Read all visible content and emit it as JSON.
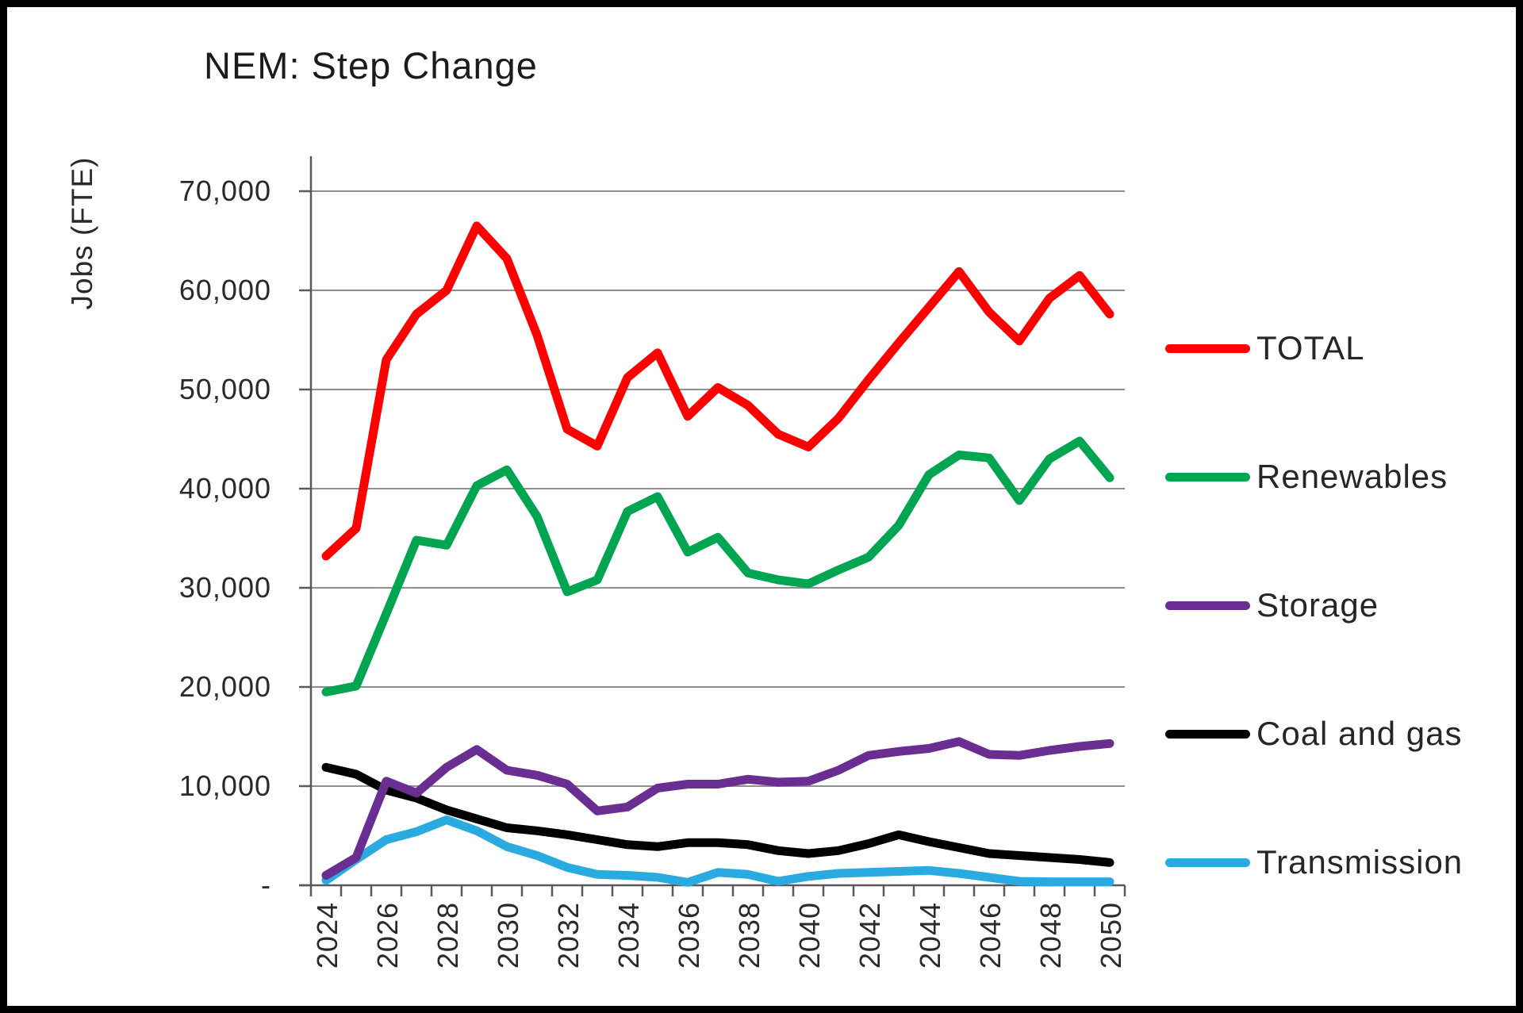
{
  "chart_data": {
    "type": "line",
    "title": "NEM: Step Change",
    "ylabel": "Jobs (FTE)",
    "xlabel": "",
    "x": [
      2024,
      2025,
      2026,
      2027,
      2028,
      2029,
      2030,
      2031,
      2032,
      2033,
      2034,
      2035,
      2036,
      2037,
      2038,
      2039,
      2040,
      2041,
      2042,
      2043,
      2044,
      2045,
      2046,
      2047,
      2048,
      2049,
      2050
    ],
    "x_tick_label_step": 2,
    "ylim": [
      0,
      70000
    ],
    "yticks": [
      {
        "value": 70000,
        "label": "70,000"
      },
      {
        "value": 60000,
        "label": "60,000"
      },
      {
        "value": 50000,
        "label": "50,000"
      },
      {
        "value": 40000,
        "label": "40,000"
      },
      {
        "value": 30000,
        "label": "30,000"
      },
      {
        "value": 20000,
        "label": "20,000"
      },
      {
        "value": 10000,
        "label": "10,000"
      },
      {
        "value": 0,
        "label": "-"
      }
    ],
    "grid": "horizontal",
    "legend_position": "right",
    "colors": {
      "grid": "#8f8f8f",
      "axis": "#595959",
      "background": "#ffffff"
    },
    "series": [
      {
        "name": "TOTAL",
        "color": "#FF0000",
        "values": [
          33200,
          36000,
          53000,
          57600,
          60000,
          66500,
          63200,
          55500,
          46000,
          44300,
          51200,
          53700,
          47300,
          50200,
          48400,
          45500,
          44200,
          47100,
          51000,
          54700,
          58300,
          61900,
          57800,
          54900,
          59200,
          61500,
          57600
        ]
      },
      {
        "name": "Renewables",
        "color": "#00A551",
        "values": [
          19500,
          20100,
          27400,
          34800,
          34300,
          40300,
          41900,
          37200,
          29600,
          30800,
          37700,
          39200,
          33600,
          35100,
          31500,
          30800,
          30400,
          31800,
          33100,
          36300,
          41400,
          43400,
          43100,
          38800,
          43000,
          44800,
          41100
        ]
      },
      {
        "name": "Storage",
        "color": "#6A2D91",
        "values": [
          1000,
          2800,
          10500,
          9300,
          11900,
          13700,
          11600,
          11100,
          10200,
          7500,
          7900,
          9800,
          10200,
          10200,
          10700,
          10400,
          10500,
          11600,
          13100,
          13500,
          13800,
          14500,
          13200,
          13100,
          13600,
          14000,
          14300
        ]
      },
      {
        "name": "Coal and gas",
        "color": "#000000",
        "values": [
          11900,
          11200,
          9600,
          8800,
          7600,
          6700,
          5800,
          5500,
          5100,
          4600,
          4100,
          3900,
          4300,
          4300,
          4100,
          3500,
          3200,
          3500,
          4200,
          5100,
          4400,
          3800,
          3200,
          3000,
          2800,
          2600,
          2300
        ]
      },
      {
        "name": "Transmission",
        "color": "#29ABE2",
        "values": [
          500,
          2600,
          4600,
          5400,
          6600,
          5500,
          3900,
          3000,
          1800,
          1100,
          1000,
          800,
          300,
          1300,
          1100,
          400,
          900,
          1200,
          1300,
          1400,
          1500,
          1200,
          800,
          400,
          350,
          350,
          350
        ]
      }
    ]
  }
}
